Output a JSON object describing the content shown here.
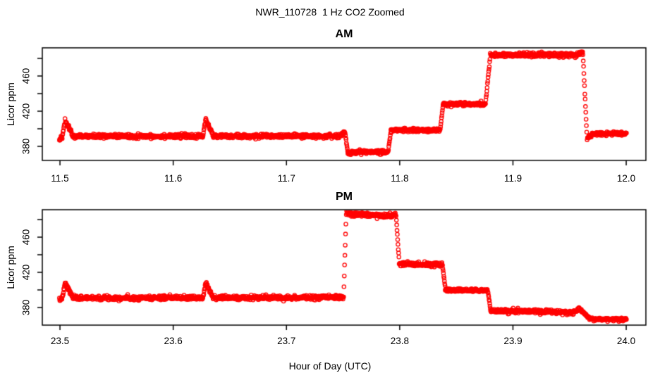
{
  "chart_data": {
    "type": "scatter",
    "title": "NWR_110728  1 Hz CO2 Zoomed",
    "xlabel": "Hour of Day (UTC)",
    "ylabel": "Licor ppm",
    "marker": "open-circle",
    "point_color": "#FF0000",
    "axis_color": "#000000",
    "sample_rate_hz": 1,
    "legend": "none",
    "grid": false,
    "panels": [
      {
        "title": "AM",
        "xlim": [
          11.4844,
          12.0174
        ],
        "ylim": [
          364,
          492
        ],
        "x_ticks": [
          11.5,
          11.6,
          11.7,
          11.8,
          11.9,
          12.0
        ],
        "x_tick_labels": [
          "11.5",
          "11.6",
          "11.7",
          "11.8",
          "11.9",
          "12.0"
        ],
        "y_ticks": [
          380,
          400,
          420,
          440,
          460,
          480
        ],
        "y_tick_labels": [
          "380",
          "",
          "420",
          "",
          "460",
          ""
        ],
        "seed": 42,
        "segments": [
          [
            11.4995,
            11.5025,
            388.0,
            393.0,
            1.0
          ],
          [
            11.5025,
            11.5048,
            393.0,
            411.0,
            1.2
          ],
          [
            11.5048,
            11.5115,
            409.0,
            392.0,
            1.2
          ],
          [
            11.5115,
            11.6262,
            391.5,
            391.5,
            1.15
          ],
          [
            11.6262,
            11.6288,
            391.5,
            411.0,
            1.0
          ],
          [
            11.6288,
            11.6355,
            410.0,
            392.0,
            1.2
          ],
          [
            11.6355,
            11.7478,
            391.5,
            391.5,
            1.15
          ],
          [
            11.7478,
            11.7518,
            392.5,
            396.5,
            1.1
          ],
          [
            11.7518,
            11.7542,
            395.0,
            372.0,
            0.6
          ],
          [
            11.7542,
            11.758,
            371.5,
            373.0,
            1.0
          ],
          [
            11.758,
            11.7898,
            373.5,
            373.5,
            1.05
          ],
          [
            11.7898,
            11.7922,
            374.0,
            398.0,
            0.6
          ],
          [
            11.7922,
            11.8358,
            398.5,
            398.5,
            1.05
          ],
          [
            11.8358,
            11.8382,
            399.0,
            427.5,
            0.6
          ],
          [
            11.8382,
            11.8758,
            428.0,
            428.0,
            1.05
          ],
          [
            11.8758,
            11.88,
            428.5,
            483.0,
            0.7
          ],
          [
            11.88,
            11.956,
            484.0,
            484.0,
            1.3
          ],
          [
            11.956,
            11.9618,
            484.0,
            487.0,
            1.2
          ],
          [
            11.9618,
            11.9655,
            485.0,
            389.0,
            0.6
          ],
          [
            11.9655,
            11.9705,
            388.5,
            394.0,
            1.0
          ],
          [
            11.9705,
            12.0005,
            394.5,
            394.5,
            1.05
          ]
        ]
      },
      {
        "title": "PM",
        "xlim": [
          23.4844,
          24.0174
        ],
        "ylim": [
          360,
          491.2
        ],
        "x_ticks": [
          23.5,
          23.6,
          23.7,
          23.8,
          23.9,
          24.0
        ],
        "x_tick_labels": [
          "23.5",
          "23.6",
          "23.7",
          "23.8",
          "23.9",
          "24.0"
        ],
        "y_ticks": [
          380,
          400,
          420,
          440,
          460,
          480
        ],
        "y_tick_labels": [
          "380",
          "",
          "420",
          "",
          "460",
          ""
        ],
        "seed": 7,
        "segments": [
          [
            23.4995,
            23.5025,
            388.0,
            392.0,
            1.0
          ],
          [
            23.5025,
            23.5048,
            393.0,
            409.0,
            1.2
          ],
          [
            23.5048,
            23.5115,
            407.0,
            391.5,
            1.2
          ],
          [
            23.5115,
            23.6262,
            391.0,
            391.0,
            1.15
          ],
          [
            23.6262,
            23.6288,
            391.0,
            409.0,
            1.0
          ],
          [
            23.6288,
            23.6355,
            408.0,
            391.5,
            1.2
          ],
          [
            23.6355,
            23.7505,
            391.0,
            391.5,
            1.15
          ],
          [
            23.7505,
            23.7528,
            392.0,
            486.0,
            0.8
          ],
          [
            23.7528,
            23.76,
            487.0,
            486.0,
            1.3
          ],
          [
            23.76,
            23.7968,
            486.0,
            484.5,
            1.3
          ],
          [
            23.7968,
            23.7995,
            484.0,
            431.0,
            0.7
          ],
          [
            23.7995,
            23.8378,
            429.5,
            428.5,
            1.05
          ],
          [
            23.8378,
            23.8402,
            428.5,
            401.0,
            0.6
          ],
          [
            23.8402,
            23.8778,
            400.0,
            399.5,
            1.05
          ],
          [
            23.8778,
            23.8802,
            399.5,
            377.0,
            0.6
          ],
          [
            23.8802,
            23.953,
            376.5,
            374.5,
            1.05
          ],
          [
            23.953,
            23.9585,
            374.5,
            378.5,
            1.0
          ],
          [
            23.9585,
            23.968,
            378.5,
            367.5,
            0.8
          ],
          [
            23.968,
            24.0005,
            367.0,
            366.5,
            0.9
          ]
        ]
      }
    ]
  }
}
